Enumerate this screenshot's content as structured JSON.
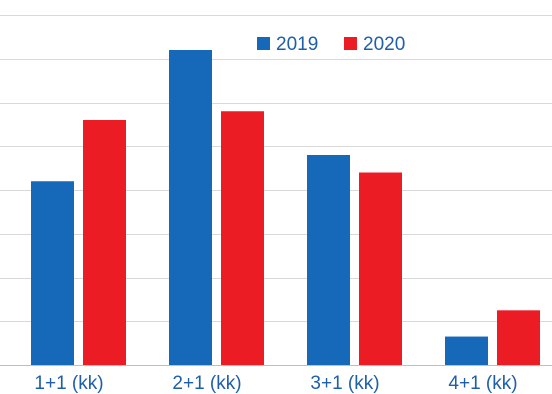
{
  "chart_data": {
    "type": "bar",
    "categories": [
      "1+1 (kk)",
      "2+1 (kk)",
      "3+1 (kk)",
      "4+1 (kk)"
    ],
    "series": [
      {
        "name": "2019",
        "color": "#1668b8",
        "values": [
          42,
          72,
          48,
          6.5
        ]
      },
      {
        "name": "2020",
        "color": "#ec1c24",
        "values": [
          56,
          58,
          44,
          12.5
        ]
      }
    ],
    "ylim": [
      0,
      80
    ],
    "grid": true,
    "legend": "top-right",
    "title": "",
    "xlabel": "",
    "ylabel": ""
  }
}
